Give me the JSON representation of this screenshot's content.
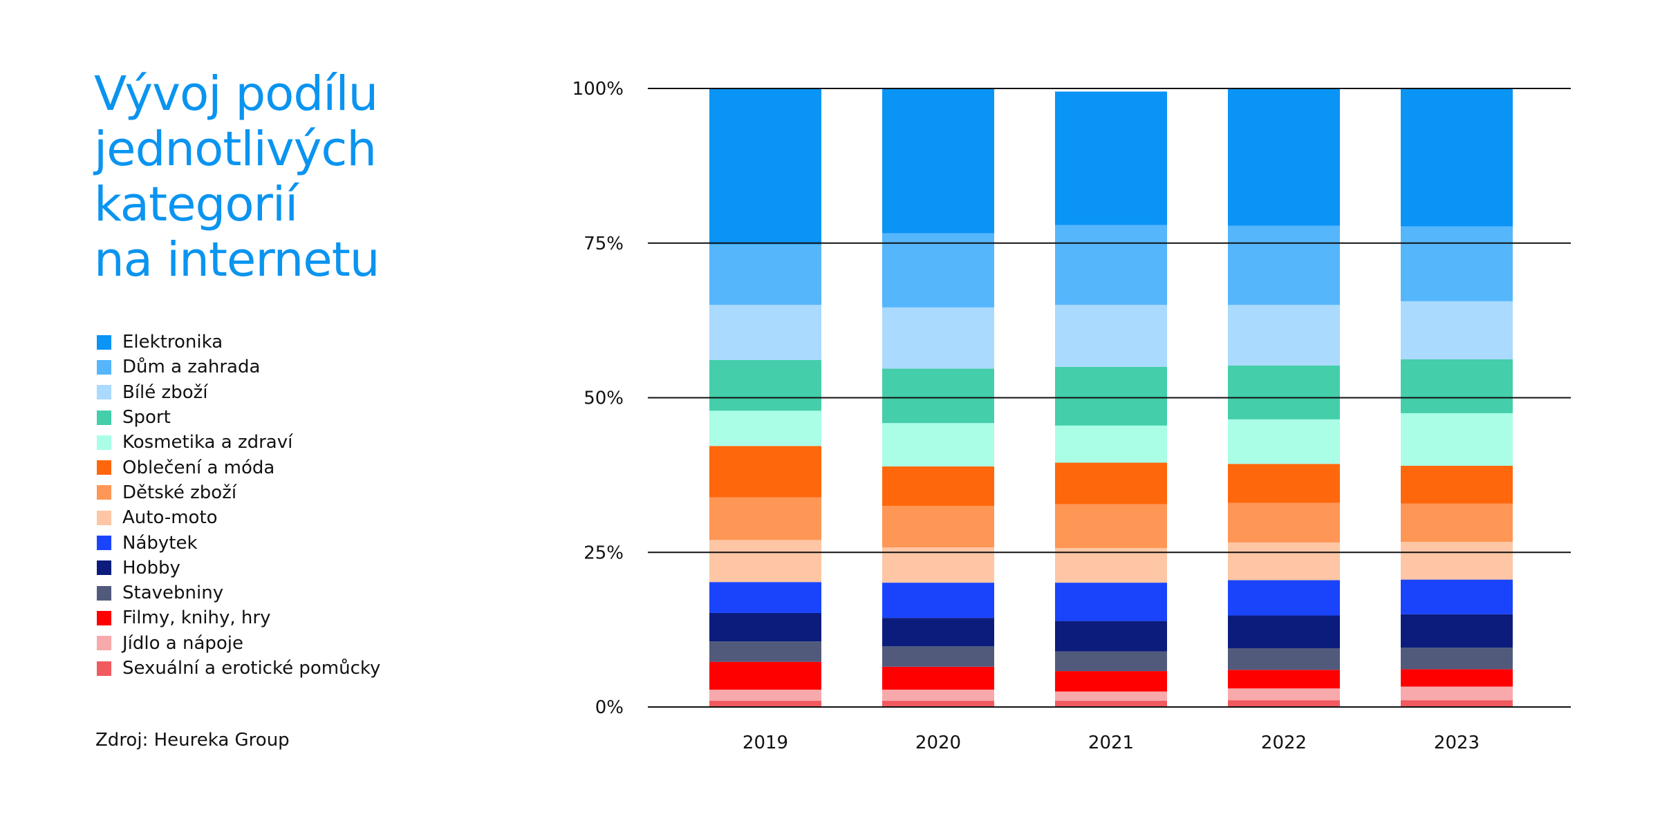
{
  "title_lines": [
    "Vývoj podílu",
    "jednotlivých",
    "kategorií",
    "na internetu"
  ],
  "source": "Zdroj: Heureka Group",
  "chart_data": {
    "type": "bar",
    "stacked": true,
    "title": "Vývoj podílu jednotlivých kategorií na internetu",
    "categories": [
      "2019",
      "2020",
      "2021",
      "2022",
      "2023"
    ],
    "ylim": [
      0,
      100
    ],
    "yticks": [
      0,
      25,
      50,
      75,
      100
    ],
    "ytick_labels": [
      "0%",
      "25%",
      "50%",
      "75%",
      "100%"
    ],
    "grid": "horizontal",
    "legend_position": "left",
    "series": [
      {
        "name": "Sexuální a erotické pomůcky",
        "color": "#f15a5f",
        "values": [
          1.0,
          1.0,
          1.0,
          1.1,
          1.1
        ]
      },
      {
        "name": "Jídlo a nápoje",
        "color": "#f8a9ab",
        "values": [
          1.8,
          1.8,
          1.5,
          1.9,
          2.2
        ]
      },
      {
        "name": "Filmy, knihy, hry",
        "color": "#fe0000",
        "values": [
          4.5,
          3.7,
          3.3,
          3.0,
          2.8
        ]
      },
      {
        "name": "Stavebniny",
        "color": "#525a7c",
        "values": [
          3.3,
          3.3,
          3.2,
          3.5,
          3.5
        ]
      },
      {
        "name": "Hobby",
        "color": "#0c1c7c",
        "values": [
          4.6,
          4.6,
          4.9,
          5.3,
          5.4
        ]
      },
      {
        "name": "Nábytek",
        "color": "#1a44fc",
        "values": [
          5.0,
          5.7,
          6.2,
          5.7,
          5.6
        ]
      },
      {
        "name": "Auto-moto",
        "color": "#fec6a4",
        "values": [
          6.8,
          5.7,
          5.6,
          6.1,
          6.1
        ]
      },
      {
        "name": "Dětské zboží",
        "color": "#fe9655",
        "values": [
          6.9,
          6.7,
          7.1,
          6.4,
          6.2
        ]
      },
      {
        "name": "Oblečení a móda",
        "color": "#fe670c",
        "values": [
          8.3,
          6.4,
          6.7,
          6.3,
          6.1
        ]
      },
      {
        "name": "Kosmetika a zdraví",
        "color": "#aafee6",
        "values": [
          5.7,
          7.0,
          6.0,
          7.2,
          8.5
        ]
      },
      {
        "name": "Sport",
        "color": "#44ceaa",
        "values": [
          8.2,
          8.8,
          9.5,
          8.7,
          8.7
        ]
      },
      {
        "name": "Bílé zboží",
        "color": "#aadafe",
        "values": [
          8.9,
          9.9,
          10.0,
          9.8,
          9.4
        ]
      },
      {
        "name": "Dům a zahrada",
        "color": "#55b6fc",
        "values": [
          9.8,
          12.0,
          12.9,
          12.8,
          12.1
        ]
      },
      {
        "name": "Elektronika",
        "color": "#0a94f6",
        "values": [
          25.2,
          23.4,
          21.6,
          22.2,
          22.3
        ]
      }
    ]
  }
}
